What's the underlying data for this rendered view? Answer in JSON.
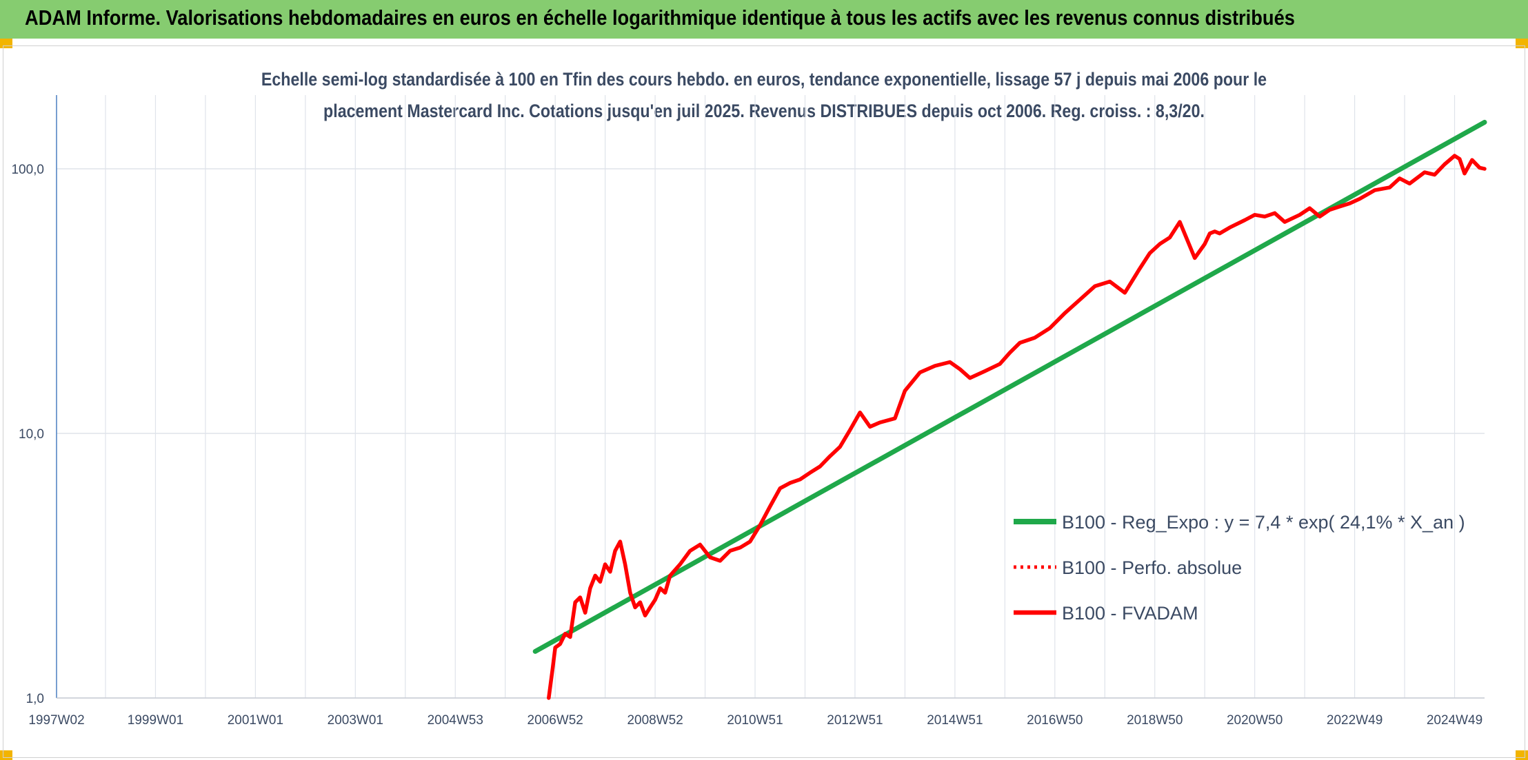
{
  "banner": {
    "title": "ADAM Informe. Valorisations hebdomadaires en euros en échelle logarithmique identique à tous les actifs avec les revenus connus distribués"
  },
  "colors": {
    "banner": "#86cc70",
    "corner": "#f2b400",
    "trend": "#1fa84a",
    "fvadam": "#ff0000",
    "text": "#3b4a63",
    "grid": "#dfe3ea",
    "axis": "#4a7fc1"
  },
  "chart_data": {
    "type": "line",
    "title_lines": [
      "Echelle semi-log standardisée à 100 en Tfin des cours hebdo. en euros, tendance exponentielle, lissage 57 j depuis mai 2006 pour le",
      "placement Mastercard Inc. Cotations jusqu'en juil 2025. Revenus DISTRIBUES depuis oct 2006. Reg. croiss. : 8,3/20."
    ],
    "y_scale": "log",
    "ylim": [
      1,
      190
    ],
    "y_ticks": [
      "1,0",
      "10,0",
      "100,0"
    ],
    "y_tick_values": [
      1,
      10,
      100
    ],
    "xlim": [
      1997.02,
      2025.6
    ],
    "x_tick_labels": [
      "1997W02",
      "1999W01",
      "2001W01",
      "2003W01",
      "2004W53",
      "2006W52",
      "2008W52",
      "2010W51",
      "2012W51",
      "2014W51",
      "2016W50",
      "2018W50",
      "2020W50",
      "2022W49",
      "2024W49"
    ],
    "x_tick_values": [
      1997.02,
      1999.0,
      2001.0,
      2003.0,
      2005.0,
      2007.0,
      2009.0,
      2011.0,
      2013.0,
      2015.0,
      2017.0,
      2019.0,
      2021.0,
      2023.0,
      2025.0
    ],
    "grid": true,
    "legend_position": "bottom-right",
    "series": [
      {
        "name": "B100 - Reg_Expo : y = 7,4 * exp( 24,1% *  X_an )",
        "style": "solid-thick",
        "x": [
          2006.6,
          2025.6
        ],
        "y": [
          1.5,
          150
        ]
      },
      {
        "name": "B100 - Perfo. absolue",
        "style": "dotted",
        "x": [],
        "y": []
      },
      {
        "name": "B100 - FVADAM",
        "style": "solid",
        "x": [
          2006.87,
          2006.95,
          2007.0,
          2007.1,
          2007.2,
          2007.3,
          2007.4,
          2007.5,
          2007.6,
          2007.7,
          2007.8,
          2007.9,
          2008.0,
          2008.1,
          2008.2,
          2008.3,
          2008.4,
          2008.5,
          2008.6,
          2008.7,
          2008.8,
          2008.9,
          2009.0,
          2009.1,
          2009.2,
          2009.3,
          2009.5,
          2009.7,
          2009.9,
          2010.1,
          2010.3,
          2010.5,
          2010.7,
          2010.9,
          2011.1,
          2011.3,
          2011.5,
          2011.7,
          2011.9,
          2012.1,
          2012.3,
          2012.5,
          2012.7,
          2012.9,
          2013.1,
          2013.3,
          2013.5,
          2013.8,
          2014.0,
          2014.3,
          2014.6,
          2014.9,
          2015.1,
          2015.3,
          2015.6,
          2015.9,
          2016.1,
          2016.3,
          2016.6,
          2016.9,
          2017.2,
          2017.5,
          2017.8,
          2018.1,
          2018.4,
          2018.7,
          2018.9,
          2019.1,
          2019.3,
          2019.5,
          2019.8,
          2020.0,
          2020.1,
          2020.2,
          2020.3,
          2020.5,
          2020.8,
          2021.0,
          2021.2,
          2021.4,
          2021.6,
          2021.9,
          2022.1,
          2022.3,
          2022.5,
          2022.7,
          2022.9,
          2023.1,
          2023.4,
          2023.7,
          2023.9,
          2024.1,
          2024.4,
          2024.6,
          2024.8,
          2025.0,
          2025.1,
          2025.2,
          2025.35,
          2025.5,
          2025.6
        ],
        "y": [
          1.0,
          1.3,
          1.55,
          1.6,
          1.75,
          1.7,
          2.3,
          2.4,
          2.1,
          2.6,
          2.9,
          2.75,
          3.2,
          3.0,
          3.6,
          3.9,
          3.2,
          2.5,
          2.2,
          2.3,
          2.05,
          2.2,
          2.35,
          2.6,
          2.5,
          2.9,
          3.2,
          3.6,
          3.8,
          3.4,
          3.3,
          3.6,
          3.7,
          3.9,
          4.5,
          5.3,
          6.2,
          6.5,
          6.7,
          7.1,
          7.5,
          8.2,
          8.9,
          10.3,
          12.0,
          10.6,
          11.0,
          11.4,
          14.5,
          17.0,
          18.0,
          18.6,
          17.5,
          16.2,
          17.2,
          18.3,
          20.2,
          22.0,
          23.0,
          25.0,
          28.5,
          32.0,
          36.0,
          37.5,
          34.0,
          42.0,
          48.0,
          52.0,
          55.0,
          63.0,
          46.0,
          52.0,
          57.0,
          58.0,
          57.0,
          60.0,
          64.0,
          67.0,
          66.0,
          68.0,
          63.0,
          67.0,
          71.0,
          66.0,
          70.0,
          72.0,
          74.0,
          77.0,
          83.0,
          85.0,
          92.0,
          88.0,
          97.0,
          95.0,
          104.0,
          112.0,
          109.0,
          96.0,
          108.0,
          101.0,
          100.0
        ]
      }
    ]
  }
}
